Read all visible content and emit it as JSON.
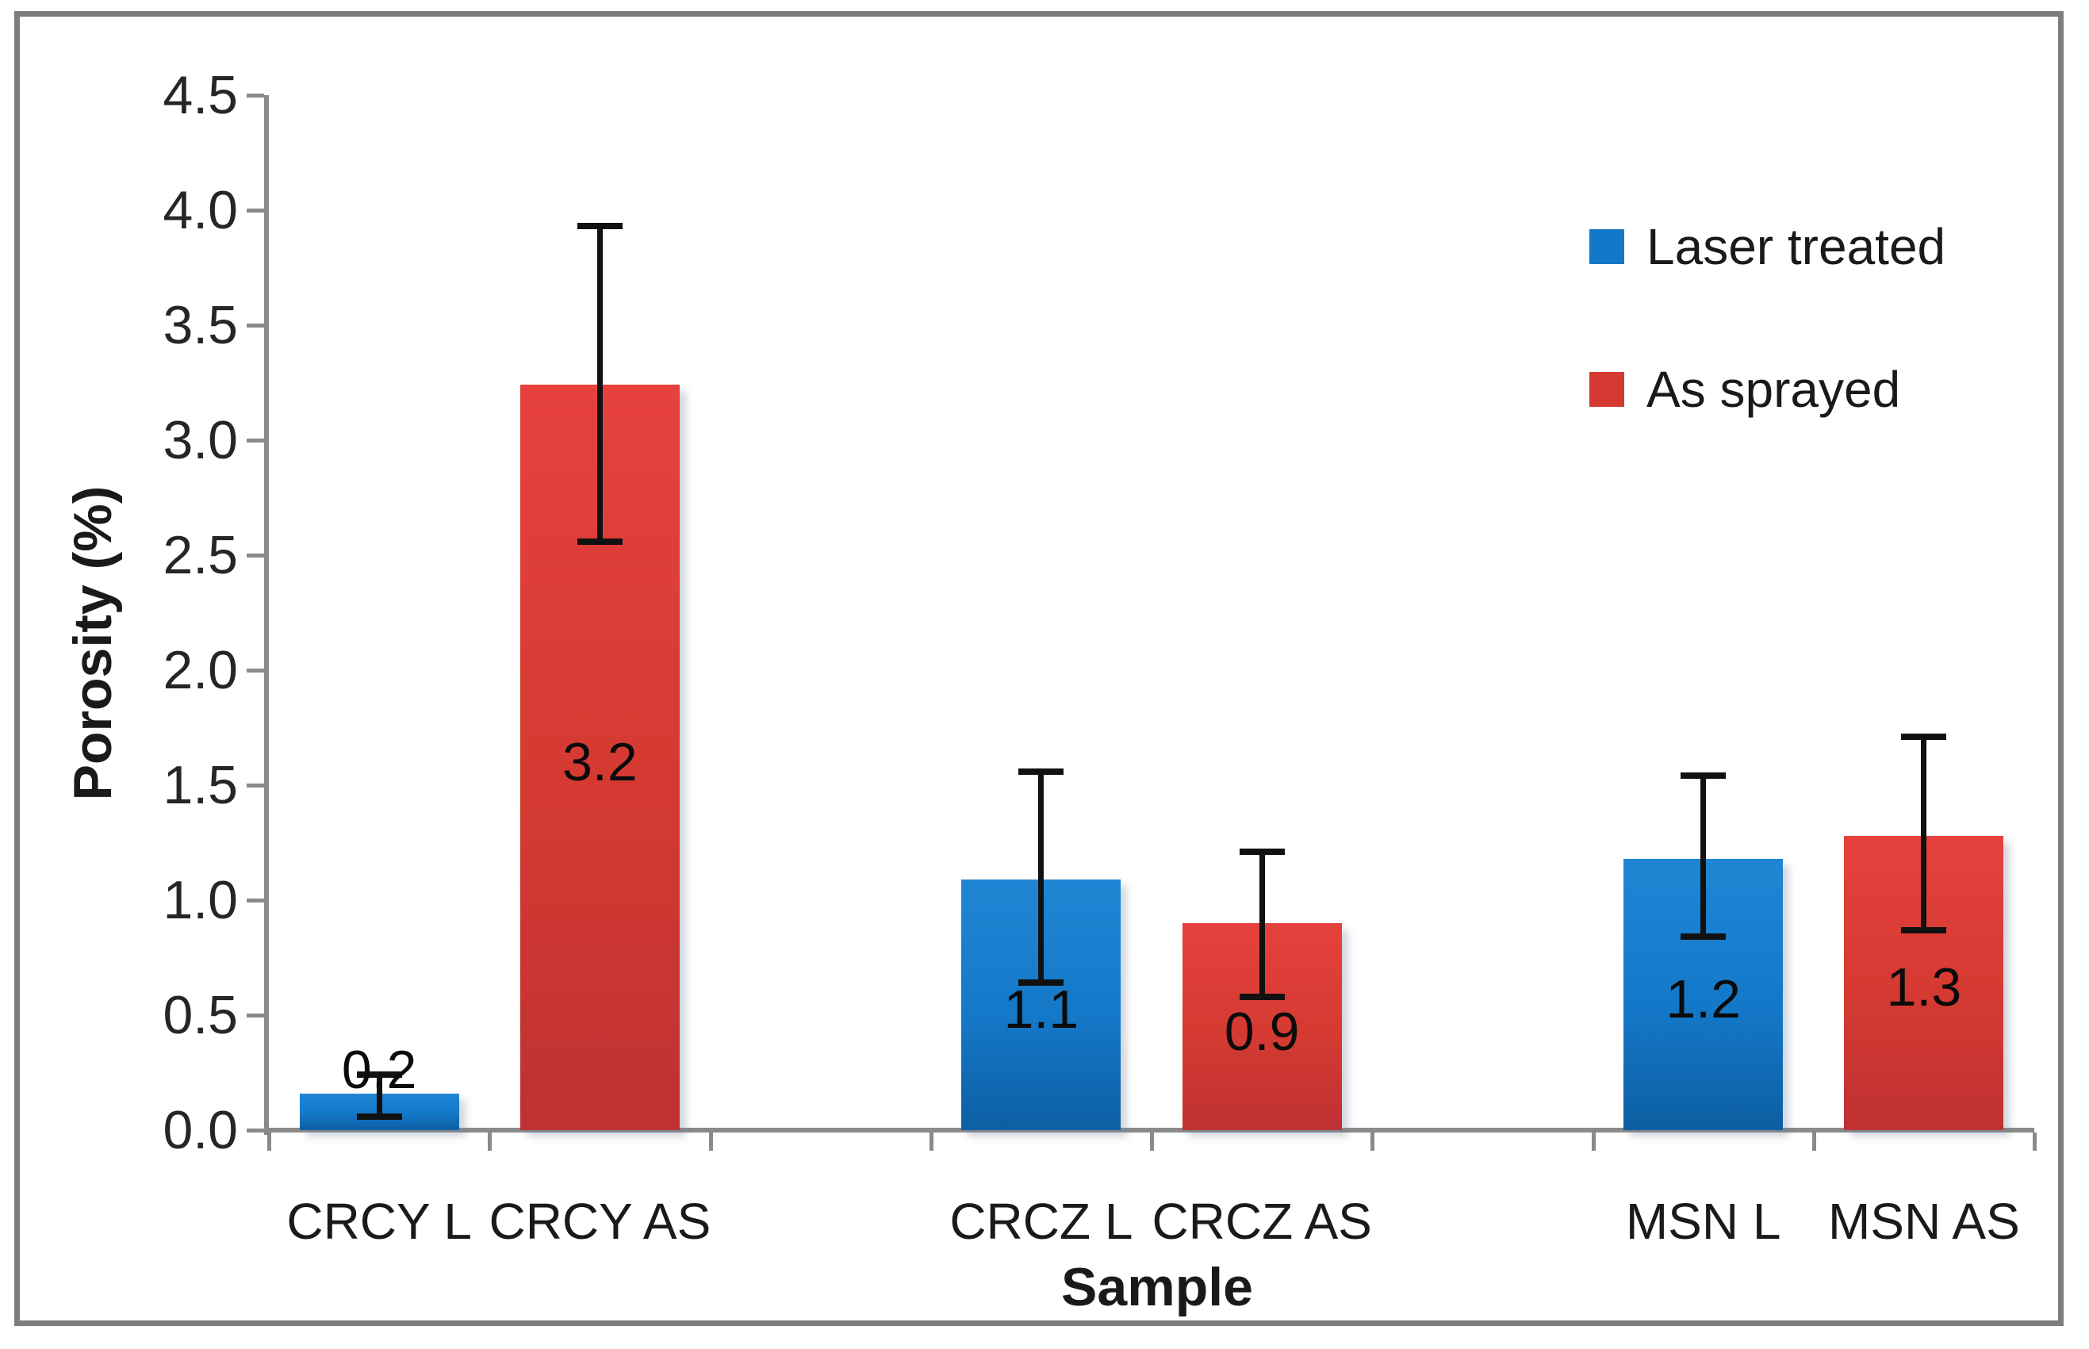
{
  "figure": {
    "background": "#ffffff",
    "border_color": "#7d7d7d",
    "axis_color": "#8a8a8a",
    "error_bar_color": "#111111"
  },
  "chart_data": {
    "type": "bar",
    "title": "",
    "xlabel": "Sample",
    "ylabel": "Porosity (%)",
    "ylim": [
      0,
      4.5
    ],
    "ytick_step": 0.5,
    "ytick_labels": [
      "0.0",
      "0.5",
      "1.0",
      "1.5",
      "2.0",
      "2.5",
      "3.0",
      "3.5",
      "4.0",
      "4.5"
    ],
    "grid": false,
    "num_slots": 8,
    "legend": {
      "position": "top-right",
      "entries": [
        {
          "label": "Laser treated",
          "color_key": "blue",
          "swatch_color": "#1478c8"
        },
        {
          "label": "As sprayed",
          "color_key": "red",
          "swatch_color": "#d43a31"
        }
      ]
    },
    "series_colors": {
      "blue": {
        "flat": "#1478c8",
        "top": "#1f86d4",
        "bottom": "#0d5fa2"
      },
      "red": {
        "flat": "#d43a31",
        "top": "#e6413d",
        "bottom": "#bf3134"
      }
    },
    "categories": [
      "CRCY L",
      "CRCY AS",
      "CRCZ L",
      "CRCZ AS",
      "MSN L",
      "MSN AS"
    ],
    "points": [
      {
        "category": "CRCY L",
        "series": "Laser treated",
        "label": "0.2",
        "height": 0.16,
        "err_low": 0.06,
        "err_high": 0.24,
        "slot": 0,
        "color_key": "blue",
        "label_above": true
      },
      {
        "category": "CRCY AS",
        "series": "As sprayed",
        "label": "3.2",
        "height": 3.24,
        "err_low": 2.56,
        "err_high": 3.93,
        "slot": 1,
        "color_key": "red",
        "label_above": false
      },
      {
        "category": "CRCZ L",
        "series": "Laser treated",
        "label": "1.1",
        "height": 1.09,
        "err_low": 0.64,
        "err_high": 1.56,
        "slot": 3,
        "color_key": "blue",
        "label_above": false
      },
      {
        "category": "CRCZ AS",
        "series": "As sprayed",
        "label": "0.9",
        "height": 0.9,
        "err_low": 0.58,
        "err_high": 1.21,
        "slot": 4,
        "color_key": "red",
        "label_above": false
      },
      {
        "category": "MSN L",
        "series": "Laser treated",
        "label": "1.2",
        "height": 1.18,
        "err_low": 0.84,
        "err_high": 1.54,
        "slot": 6,
        "color_key": "blue",
        "label_above": false
      },
      {
        "category": "MSN AS",
        "series": "As sprayed",
        "label": "1.3",
        "height": 1.28,
        "err_low": 0.87,
        "err_high": 1.71,
        "slot": 7,
        "color_key": "red",
        "label_above": false
      }
    ]
  }
}
